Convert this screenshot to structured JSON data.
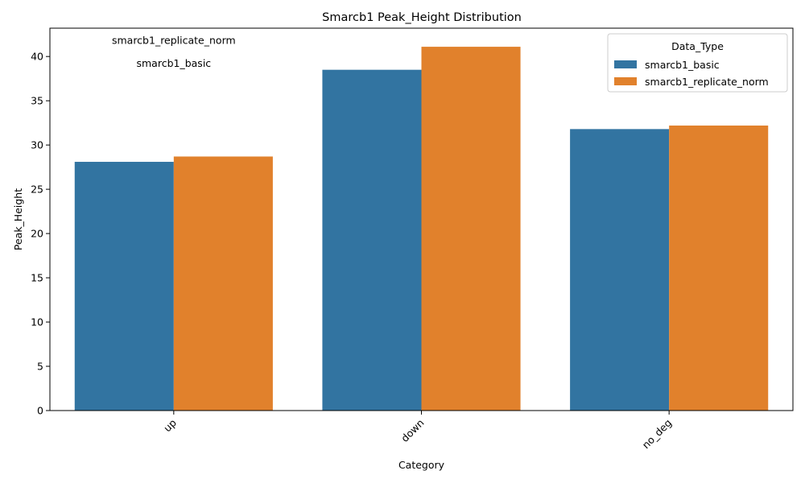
{
  "chart_data": {
    "type": "bar",
    "title": "Smarcb1 Peak_Height Distribution",
    "xlabel": "Category",
    "ylabel": "Peak_Height",
    "categories": [
      "up",
      "down",
      "no_deg"
    ],
    "series": [
      {
        "name": "smarcb1_basic",
        "color": "#3274a1",
        "values": [
          28.1,
          38.5,
          31.8
        ]
      },
      {
        "name": "smarcb1_replicate_norm",
        "color": "#e1812c",
        "values": [
          28.7,
          41.1,
          32.2
        ]
      }
    ],
    "ylim": [
      0,
      43.2
    ],
    "yticks": [
      0,
      5,
      10,
      15,
      20,
      25,
      30,
      35,
      40
    ],
    "xtick_rotation": 45,
    "grid": false,
    "legend": {
      "title": "Data_Type",
      "placement": "top-right"
    },
    "annotations": [
      {
        "text": "smarcb1_replicate_norm",
        "category": "up",
        "y": 41.8
      },
      {
        "text": "smarcb1_basic",
        "category": "up",
        "y": 39.2
      }
    ]
  }
}
